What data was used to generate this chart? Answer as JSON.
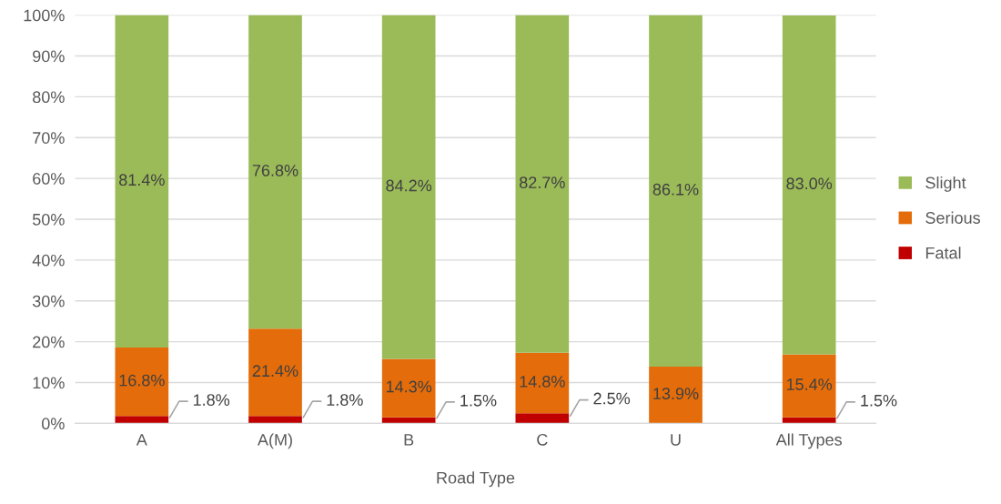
{
  "chart_data": {
    "type": "bar",
    "stacked": true,
    "xlabel": "Road Type",
    "categories": [
      "A",
      "A(M)",
      "B",
      "C",
      "U",
      "All Types"
    ],
    "series": [
      {
        "name": "Fatal",
        "color": "#c00000",
        "values": [
          1.8,
          1.8,
          1.5,
          2.5,
          0,
          1.5
        ],
        "value_labels": [
          "1.8%",
          "1.8%",
          "1.5%",
          "2.5%",
          null,
          "1.5%"
        ]
      },
      {
        "name": "Serious",
        "color": "#e46c0a",
        "values": [
          16.8,
          21.4,
          14.3,
          14.8,
          13.9,
          15.4
        ],
        "value_labels": [
          "16.8%",
          "21.4%",
          "14.3%",
          "14.8%",
          "13.9%",
          "15.4%"
        ]
      },
      {
        "name": "Slight",
        "color": "#9bbb59",
        "values": [
          81.4,
          76.8,
          84.2,
          82.7,
          86.1,
          83.0
        ],
        "value_labels": [
          "81.4%",
          "76.8%",
          "84.2%",
          "82.7%",
          "86.1%",
          "83.0%"
        ]
      }
    ],
    "ylim": [
      0,
      100
    ],
    "yticks": [
      {
        "value": 0,
        "label": "0%"
      },
      {
        "value": 10,
        "label": "10%"
      },
      {
        "value": 20,
        "label": "20%"
      },
      {
        "value": 30,
        "label": "30%"
      },
      {
        "value": 40,
        "label": "40%"
      },
      {
        "value": 50,
        "label": "50%"
      },
      {
        "value": 60,
        "label": "60%"
      },
      {
        "value": 70,
        "label": "70%"
      },
      {
        "value": 80,
        "label": "80%"
      },
      {
        "value": 90,
        "label": "90%"
      },
      {
        "value": 100,
        "label": "100%"
      }
    ],
    "grid": "y",
    "legend": "right"
  }
}
